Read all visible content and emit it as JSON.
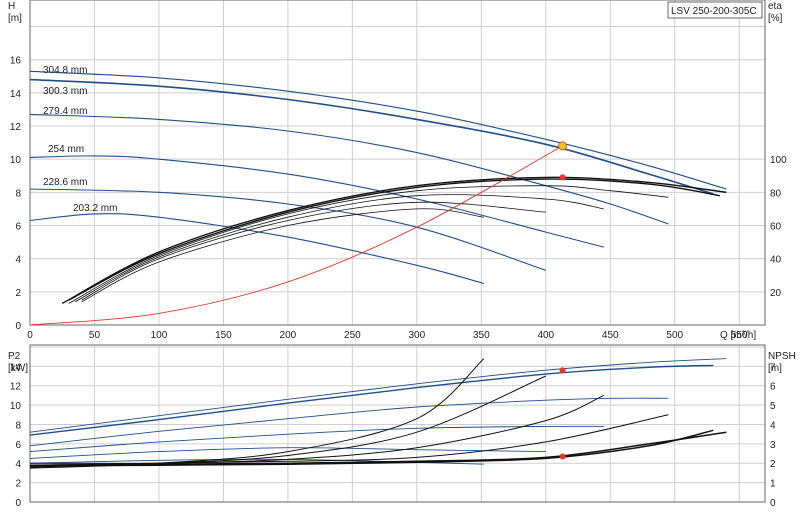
{
  "title_box": "LSV 250-200-305C",
  "chart_data": [
    {
      "type": "line",
      "title": "LSV 250-200-305C",
      "xlabel": "Q [m³/h]",
      "xticks": [
        "0",
        "50",
        "100",
        "150",
        "200",
        "250",
        "300",
        "350",
        "400",
        "450",
        "500",
        "550"
      ],
      "xlim": [
        0,
        570
      ],
      "ylabel_left": "H\n[m]",
      "ylabel_left_lines": [
        "H",
        "[m]"
      ],
      "yticks_left": [
        "0",
        "2",
        "4",
        "6",
        "8",
        "10",
        "12",
        "14",
        "16"
      ],
      "ylim_left": [
        0,
        19.6
      ],
      "ylabel_right_lines": [
        "eta",
        "[%]"
      ],
      "yticks_right": [
        "20",
        "40",
        "60",
        "80",
        "100"
      ],
      "ylim_right": [
        0,
        196
      ],
      "grid": true,
      "head_curves": [
        {
          "name": "304.8 mm",
          "x": [
            0,
            100,
            200,
            300,
            400,
            480,
            540
          ],
          "y": [
            15.3,
            14.9,
            14.1,
            12.9,
            11.2,
            9.6,
            8.2
          ]
        },
        {
          "name": "300.3 mm",
          "x": [
            0,
            100,
            200,
            300,
            400,
            480,
            530
          ],
          "y": [
            14.8,
            14.4,
            13.6,
            12.4,
            10.9,
            9.1,
            7.9
          ]
        },
        {
          "name": "279.4 mm",
          "x": [
            0,
            100,
            200,
            300,
            400,
            450,
            495
          ],
          "y": [
            12.7,
            12.4,
            11.7,
            10.4,
            8.4,
            7.3,
            6.1
          ]
        },
        {
          "name": "254 mm",
          "x": [
            0,
            50,
            100,
            200,
            300,
            400,
            445
          ],
          "y": [
            10.1,
            10.2,
            10.0,
            9.1,
            7.6,
            5.6,
            4.7
          ]
        },
        {
          "name": "228.6 mm",
          "x": [
            0,
            100,
            200,
            300,
            400
          ],
          "y": [
            8.2,
            8.0,
            7.3,
            5.9,
            3.3
          ]
        },
        {
          "name": "203.2 mm",
          "x": [
            0,
            50,
            100,
            200,
            300,
            352
          ],
          "y": [
            6.3,
            6.7,
            6.5,
            5.3,
            3.6,
            2.5
          ]
        }
      ],
      "eta_curves": [
        {
          "x": [
            25,
            100,
            200,
            300,
            400,
            480,
            540
          ],
          "y": [
            13,
            44,
            69,
            84,
            89,
            86,
            80
          ]
        },
        {
          "x": [
            30,
            100,
            200,
            300,
            400,
            480,
            535
          ],
          "y": [
            15,
            43,
            68,
            83,
            88,
            85,
            78
          ]
        },
        {
          "x": [
            30,
            100,
            200,
            300,
            400,
            450,
            495
          ],
          "y": [
            13,
            42,
            67,
            81,
            84,
            81,
            77
          ]
        },
        {
          "x": [
            35,
            100,
            200,
            300,
            400,
            445
          ],
          "y": [
            14,
            41,
            65,
            78,
            76,
            70
          ]
        },
        {
          "x": [
            40,
            100,
            200,
            300,
            400
          ],
          "y": [
            15,
            40,
            63,
            74,
            68
          ]
        },
        {
          "x": [
            40,
            100,
            200,
            300,
            352
          ],
          "y": [
            14,
            38,
            60,
            70,
            65
          ]
        }
      ],
      "system_curve": {
        "x": [
          0,
          100,
          200,
          300,
          413
        ],
        "y": [
          0,
          0.7,
          2.6,
          5.9,
          10.8
        ]
      },
      "duty_point_head": {
        "x": 413,
        "y": 10.8
      },
      "duty_point_eta": {
        "x": 413,
        "y": 89
      }
    },
    {
      "type": "line",
      "ylabel_left_lines": [
        "P2",
        "[kW]"
      ],
      "yticks_left": [
        "0",
        "2",
        "4",
        "6",
        "8",
        "10",
        "12",
        "14"
      ],
      "ylim_left": [
        0,
        16.2
      ],
      "ylabel_right_lines": [
        "NPSH",
        "[m]"
      ],
      "yticks_right": [
        "0",
        "1",
        "2",
        "3",
        "4",
        "5",
        "6",
        "7"
      ],
      "ylim_right": [
        0,
        8.1
      ],
      "xlim": [
        0,
        570
      ],
      "grid": true,
      "power_curves": [
        {
          "x": [
            0,
            100,
            200,
            300,
            400,
            480,
            540
          ],
          "y": [
            7.2,
            8.9,
            10.6,
            12.2,
            13.6,
            14.4,
            14.8
          ]
        },
        {
          "x": [
            0,
            100,
            200,
            300,
            400,
            480,
            530
          ],
          "y": [
            6.9,
            8.5,
            10.2,
            11.8,
            13.2,
            13.9,
            14.1
          ]
        },
        {
          "x": [
            0,
            100,
            200,
            300,
            400,
            450,
            495
          ],
          "y": [
            5.8,
            7.3,
            8.6,
            9.8,
            10.5,
            10.7,
            10.7
          ]
        },
        {
          "x": [
            0,
            100,
            200,
            300,
            400,
            445
          ],
          "y": [
            5.2,
            6.2,
            7.0,
            7.6,
            7.8,
            7.8
          ]
        },
        {
          "x": [
            0,
            100,
            200,
            300,
            400
          ],
          "y": [
            4.5,
            5.2,
            5.6,
            5.4,
            5.2
          ]
        },
        {
          "x": [
            0,
            100,
            200,
            300,
            352
          ],
          "y": [
            4.0,
            4.3,
            4.4,
            4.1,
            3.9
          ]
        }
      ],
      "npsh_curves": [
        {
          "x": [
            0,
            100,
            200,
            300,
            352
          ],
          "y": [
            1.75,
            2.0,
            2.6,
            4.3,
            7.4
          ]
        },
        {
          "x": [
            0,
            100,
            200,
            300,
            400
          ],
          "y": [
            1.8,
            2.0,
            2.4,
            3.6,
            6.5
          ]
        },
        {
          "x": [
            0,
            100,
            200,
            300,
            400,
            445
          ],
          "y": [
            1.9,
            2.0,
            2.2,
            2.8,
            4.2,
            5.5
          ]
        },
        {
          "x": [
            0,
            100,
            200,
            300,
            400,
            495
          ],
          "y": [
            2.0,
            2.0,
            2.1,
            2.3,
            3.1,
            4.5
          ]
        },
        {
          "x": [
            0,
            100,
            200,
            300,
            400,
            480,
            530
          ],
          "y": [
            1.85,
            1.9,
            1.95,
            2.05,
            2.25,
            2.9,
            3.7
          ]
        },
        {
          "x": [
            0,
            100,
            200,
            300,
            400,
            480,
            540
          ],
          "y": [
            1.9,
            1.95,
            2.0,
            2.1,
            2.3,
            3.0,
            3.6
          ]
        }
      ],
      "duty_point_power": {
        "x": 413,
        "y": 13.6
      },
      "duty_point_npsh": {
        "x": 413,
        "y": 2.35
      }
    }
  ]
}
